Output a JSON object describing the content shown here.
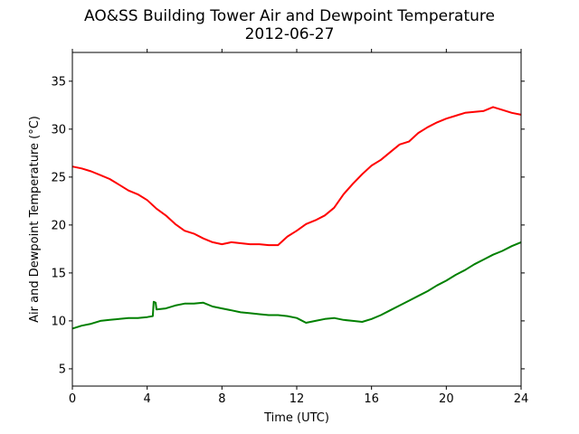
{
  "chart_data": {
    "type": "line",
    "title": "AO&SS Building Tower Air and Dewpoint Temperature",
    "subtitle": "2012-06-27",
    "xlabel": "Time (UTC)",
    "ylabel": "Air and Dewpoint Temperature (°C)",
    "xlim": [
      0,
      24
    ],
    "ylim": [
      3.2,
      38.0
    ],
    "x_ticks": [
      0,
      4,
      8,
      12,
      16,
      20,
      24
    ],
    "y_ticks": [
      5,
      10,
      15,
      20,
      25,
      30,
      35
    ],
    "grid": false,
    "legend": "none",
    "series": [
      {
        "color": "#ff0000",
        "x": [
          0,
          0.5,
          1,
          1.5,
          2,
          2.5,
          3,
          3.5,
          4,
          4.5,
          5,
          5.5,
          6,
          6.5,
          7,
          7.5,
          8,
          8.5,
          9,
          9.5,
          10,
          10.5,
          11,
          11.5,
          12,
          12.5,
          13,
          13.5,
          14,
          14.5,
          15,
          15.5,
          16,
          16.5,
          17,
          17.5,
          18,
          18.5,
          19,
          19.5,
          20,
          20.5,
          21,
          21.5,
          22,
          22.5,
          23,
          23.5,
          24
        ],
        "values": [
          26.1,
          25.9,
          25.6,
          25.2,
          24.8,
          24.2,
          23.6,
          23.2,
          22.6,
          21.7,
          21.0,
          20.1,
          19.4,
          19.1,
          18.6,
          18.2,
          18.0,
          18.2,
          18.1,
          18.0,
          18.0,
          17.9,
          17.9,
          18.8,
          19.4,
          20.1,
          20.5,
          21.0,
          21.8,
          23.2,
          24.3,
          25.3,
          26.2,
          26.8,
          27.6,
          28.4,
          28.7,
          29.6,
          30.2,
          30.7,
          31.1,
          31.4,
          31.7,
          31.8,
          31.9,
          32.3,
          32.0,
          31.7,
          31.5
        ]
      },
      {
        "color": "#008000",
        "x": [
          0,
          0.5,
          1,
          1.5,
          2,
          2.5,
          3,
          3.5,
          4,
          4.3,
          4.35,
          4.45,
          4.5,
          5,
          5.5,
          6,
          6.5,
          7,
          7.5,
          8,
          8.5,
          9,
          9.5,
          10,
          10.5,
          11,
          11.5,
          12,
          12.5,
          13,
          13.5,
          14,
          14.5,
          15,
          15.5,
          16,
          16.5,
          17,
          17.5,
          18,
          18.5,
          19,
          19.5,
          20,
          20.5,
          21,
          21.5,
          22,
          22.5,
          23,
          23.5,
          24
        ],
        "values": [
          9.2,
          9.5,
          9.7,
          10.0,
          10.1,
          10.2,
          10.3,
          10.3,
          10.4,
          10.5,
          12.0,
          11.9,
          11.2,
          11.3,
          11.6,
          11.8,
          11.8,
          11.9,
          11.5,
          11.3,
          11.1,
          10.9,
          10.8,
          10.7,
          10.6,
          10.6,
          10.5,
          10.3,
          9.8,
          10.0,
          10.2,
          10.3,
          10.1,
          10.0,
          9.9,
          10.2,
          10.6,
          11.1,
          11.6,
          12.1,
          12.6,
          13.1,
          13.7,
          14.2,
          14.8,
          15.3,
          15.9,
          16.4,
          16.9,
          17.3,
          17.8,
          18.2
        ]
      }
    ]
  }
}
